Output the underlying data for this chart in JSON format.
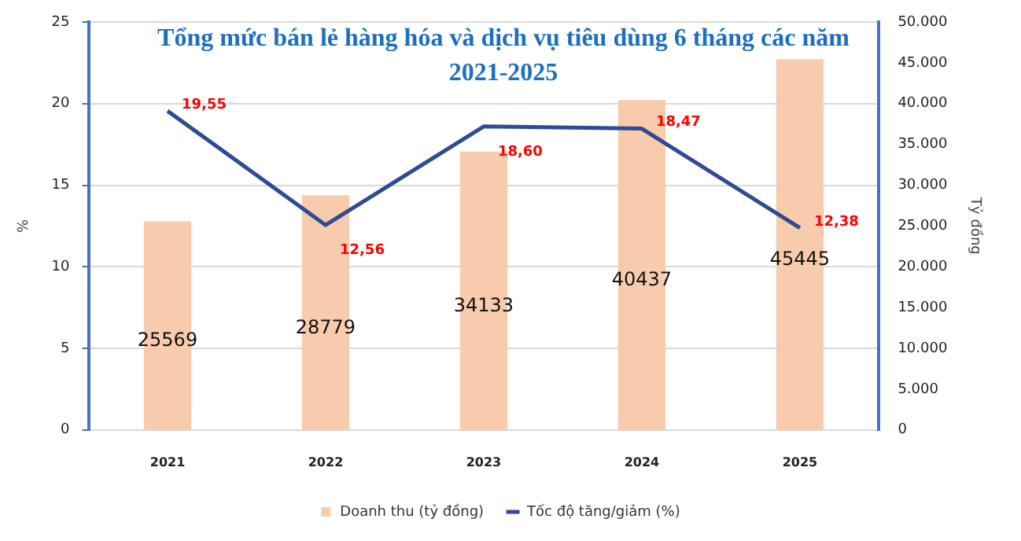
{
  "chart_data": {
    "type": "bar",
    "title": "Tổng mức bán lẻ hàng hóa và dịch vụ tiêu dùng 6 tháng các năm 2021-2025",
    "ylabel": "%",
    "y2label": "Tỷ đồng",
    "categories": [
      "2021",
      "2022",
      "2023",
      "2024",
      "2025"
    ],
    "series": [
      {
        "name": "Doanh thu (tỷ đồng)",
        "axis": "y2",
        "color": "#f8cbad",
        "values": [
          25569,
          28779,
          34133,
          40437,
          45445
        ]
      },
      {
        "name": "Tốc độ tăng/giảm (%)",
        "type": "line",
        "axis": "y",
        "color": "#2f4b93",
        "values": [
          19.55,
          12.56,
          18.6,
          18.47,
          12.38
        ],
        "value_labels": [
          "19,55",
          "12,56",
          "18,60",
          "18,47",
          "12,38"
        ]
      }
    ],
    "ylim": [
      0,
      25
    ],
    "yticks": [
      0,
      5,
      10,
      15,
      20,
      25
    ],
    "y2lim": [
      0,
      50000
    ],
    "y2ticks": [
      0,
      {
        "value": 5000,
        "label": "5.000"
      },
      {
        "value": 10000,
        "label": "10.000"
      },
      {
        "value": 15000,
        "label": "15.000"
      },
      {
        "value": 20000,
        "label": "20.000"
      },
      {
        "value": 25000,
        "label": "25.000"
      },
      {
        "value": 30000,
        "label": "30.000"
      },
      {
        "value": 35000,
        "label": "35.000"
      },
      {
        "value": 40000,
        "label": "40.000"
      },
      {
        "value": 45000,
        "label": "45.000"
      },
      {
        "value": 50000,
        "label": "50.000"
      }
    ],
    "grid": "y",
    "legend": "bottom",
    "data_labels": true,
    "marker": "none",
    "line_style": "solid"
  }
}
